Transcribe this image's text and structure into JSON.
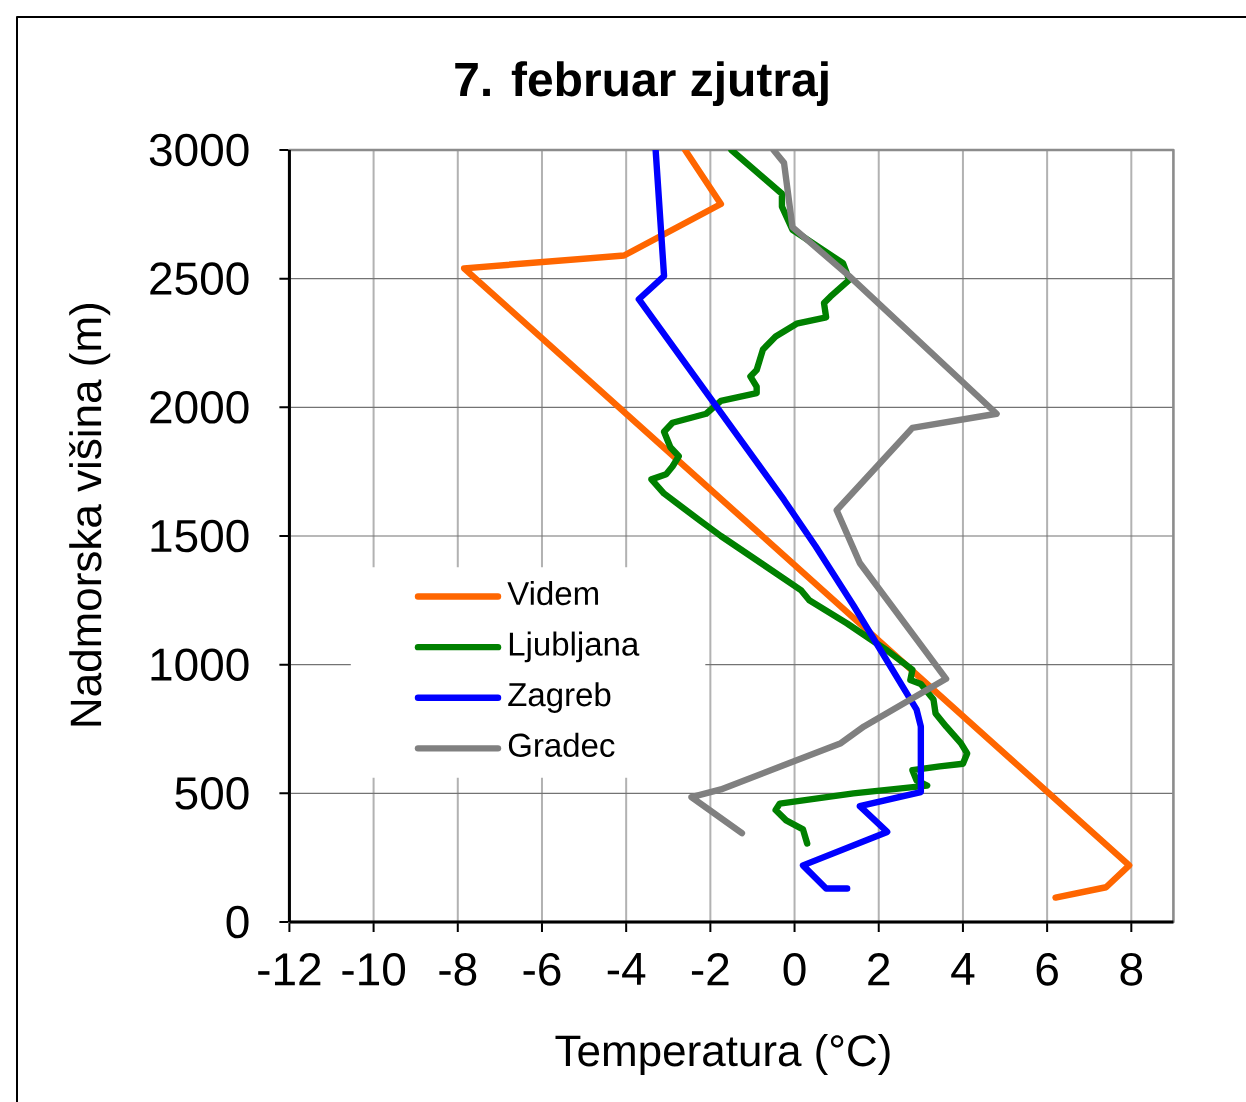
{
  "chart_data": {
    "type": "line",
    "title": "7. februar zjutraj",
    "xlabel": "Temperatura (°C)",
    "ylabel": "Nadmorska višina (m)",
    "xlim": [
      -12,
      9
    ],
    "ylim": [
      0,
      3000
    ],
    "xticks": [
      -12,
      -10,
      -8,
      -6,
      -4,
      -2,
      0,
      2,
      4,
      6,
      8
    ],
    "yticks": [
      0,
      500,
      1000,
      1500,
      2000,
      2500,
      3000
    ],
    "grid": true,
    "legend": "left",
    "series": [
      {
        "name": "Videm",
        "color": "#ff6600",
        "x": [
          -2.6,
          -1.75,
          -4.05,
          -7.85,
          7.95,
          7.4,
          6.2
        ],
        "values": [
          3000,
          2790,
          2590,
          2540,
          220,
          135,
          95
        ]
      },
      {
        "name": "Ljubljana",
        "color": "#008000",
        "x": [
          -1.5,
          -0.3,
          -0.3,
          -0.05,
          1.15,
          1.3,
          0.85,
          0.7,
          0.75,
          0.05,
          -0.45,
          -0.75,
          -0.9,
          -1.05,
          -0.9,
          -0.9,
          -1.75,
          -2.1,
          -2.9,
          -3.1,
          -2.95,
          -2.75,
          -2.9,
          -3.05,
          -3.4,
          -3.1,
          -2.25,
          -1.75,
          -0.8,
          0.15,
          0.35,
          1.25,
          2.2,
          2.8,
          2.75,
          3.0,
          3.3,
          3.35,
          3.6,
          3.95,
          4.1,
          4.0,
          3.45,
          2.8,
          2.9,
          3.15,
          1.4,
          -0.35,
          -0.45,
          -0.2,
          0.2,
          0.3
        ],
        "values": [
          3000,
          2830,
          2780,
          2690,
          2560,
          2495,
          2430,
          2405,
          2350,
          2325,
          2275,
          2225,
          2145,
          2120,
          2080,
          2055,
          2025,
          1975,
          1940,
          1905,
          1845,
          1810,
          1770,
          1740,
          1720,
          1665,
          1560,
          1500,
          1395,
          1290,
          1250,
          1160,
          1055,
          980,
          940,
          925,
          865,
          810,
          760,
          695,
          655,
          615,
          605,
          590,
          550,
          530,
          500,
          460,
          435,
          395,
          360,
          305
        ]
      },
      {
        "name": "Zagreb",
        "color": "#0000ff",
        "x": [
          -3.3,
          -3.1,
          -3.7,
          -0.25,
          0.5,
          1.4,
          2.9,
          3.0,
          3.0,
          1.55,
          2.2,
          0.2,
          0.75,
          1.25
        ],
        "values": [
          3000,
          2510,
          2420,
          1640,
          1460,
          1230,
          825,
          760,
          505,
          450,
          350,
          220,
          130,
          130
        ]
      },
      {
        "name": "Gradec",
        "color": "#808080",
        "x": [
          -0.5,
          -0.25,
          -0.05,
          1.3,
          4.8,
          2.8,
          1.0,
          1.55,
          3.6,
          1.65,
          1.1,
          -1.75,
          -2.45,
          -1.25
        ],
        "values": [
          3000,
          2950,
          2700,
          2510,
          1975,
          1920,
          1600,
          1395,
          945,
          760,
          695,
          515,
          485,
          345
        ]
      }
    ]
  }
}
